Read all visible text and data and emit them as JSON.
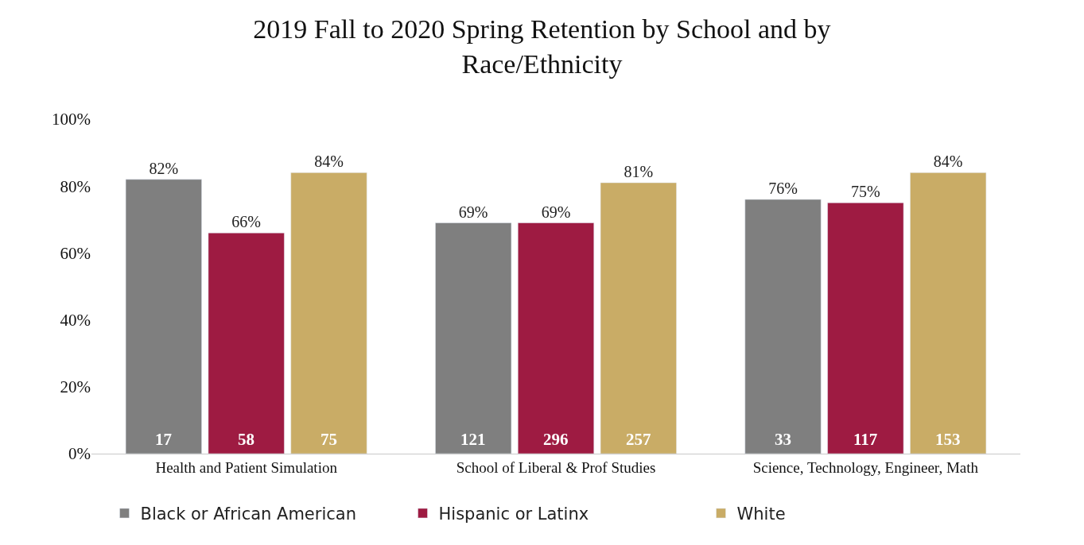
{
  "chart_data": {
    "type": "bar",
    "title": "2019 Fall to 2020 Spring Retention by School and by Race/Ethnicity",
    "categories": [
      "Health and Patient Simulation",
      "School of Liberal & Prof Studies",
      "Science, Technology, Engineer, Math"
    ],
    "series": [
      {
        "name": "Black or African American",
        "color": "#7f7f7f",
        "values": [
          82,
          69,
          76
        ],
        "value_labels": [
          "82%",
          "69%",
          "76%"
        ]
      },
      {
        "name": "Hispanic or Latinx",
        "color": "#9e1b42",
        "values": [
          66,
          69,
          75
        ],
        "value_labels": [
          "66%",
          "69%",
          "75%"
        ]
      },
      {
        "name": "White",
        "color": "#c9ac66",
        "values": [
          84,
          81,
          84
        ],
        "value_labels": [
          "84%",
          "81%",
          "84%"
        ]
      }
    ],
    "ylim": [
      0,
      100
    ],
    "yticks": [
      {
        "value": 0,
        "label": "0%"
      },
      {
        "value": 20,
        "label": "20%"
      },
      {
        "value": 40,
        "label": "40%"
      },
      {
        "value": 60,
        "label": "60%"
      },
      {
        "value": 80,
        "label": "80%"
      },
      {
        "value": 100,
        "label": "100%"
      }
    ],
    "annotations": [
      "17",
      "121",
      "33",
      "58",
      "296",
      "117",
      "75",
      "257",
      "153"
    ],
    "legend": "bottom"
  }
}
